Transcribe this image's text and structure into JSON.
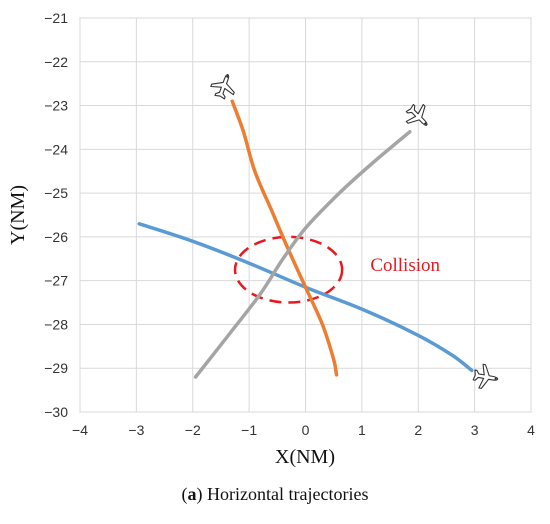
{
  "chart_data": {
    "type": "line",
    "xlabel": "X(NM)",
    "ylabel": "Y(NM)",
    "xlim": [
      -4,
      4
    ],
    "ylim": [
      -30,
      -21
    ],
    "x_ticks": [
      -4,
      -3,
      -2,
      -1,
      0,
      1,
      2,
      3,
      4
    ],
    "y_ticks": [
      -21,
      -22,
      -23,
      -24,
      -25,
      -26,
      -27,
      -28,
      -29,
      -30
    ],
    "grid": true,
    "series": [
      {
        "color": "#5b9bd5",
        "points": [
          [
            -2.95,
            -25.7
          ],
          [
            -2.0,
            -26.1
          ],
          [
            -1.0,
            -26.6
          ],
          [
            0.0,
            -27.15
          ],
          [
            1.0,
            -27.65
          ],
          [
            2.0,
            -28.25
          ],
          [
            2.6,
            -28.7
          ],
          [
            2.95,
            -29.05
          ]
        ]
      },
      {
        "color": "#ed7d31",
        "points": [
          [
            -1.3,
            -22.9
          ],
          [
            -1.1,
            -23.6
          ],
          [
            -0.9,
            -24.5
          ],
          [
            -0.6,
            -25.4
          ],
          [
            -0.3,
            -26.3
          ],
          [
            0.0,
            -27.15
          ],
          [
            0.3,
            -28.0
          ],
          [
            0.5,
            -28.8
          ],
          [
            0.55,
            -29.15
          ]
        ]
      },
      {
        "color": "#a5a5a5",
        "points": [
          [
            -1.95,
            -29.2
          ],
          [
            -1.4,
            -28.3
          ],
          [
            -0.8,
            -27.3
          ],
          [
            -0.4,
            -26.5
          ],
          [
            0.0,
            -25.8
          ],
          [
            0.6,
            -25.0
          ],
          [
            1.2,
            -24.3
          ],
          [
            1.85,
            -23.6
          ]
        ]
      }
    ],
    "annotations": [
      {
        "text": "Collision",
        "x": 1.15,
        "y": -26.78,
        "color": "#e8191e"
      }
    ],
    "collision_zone": {
      "cx": -0.3,
      "cy": -26.75,
      "rx": 0.95,
      "ry": 0.75,
      "color": "#e8191e"
    },
    "aircraft": [
      {
        "name": "airplane-icon",
        "x": -1.45,
        "y": -22.55,
        "heading_deg": 20
      },
      {
        "name": "airplane-icon",
        "x": 2.0,
        "y": -23.25,
        "heading_deg": 135
      },
      {
        "name": "airplane-icon",
        "x": 3.2,
        "y": -29.2,
        "heading_deg": 100
      }
    ]
  },
  "caption": {
    "prefix": "(",
    "letter": "a",
    "suffix": ") Horizontal trajectories"
  }
}
